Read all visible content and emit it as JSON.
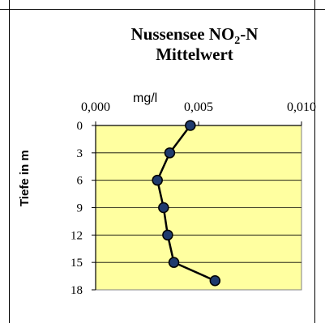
{
  "chart_data": {
    "type": "line",
    "title_main": "Nussensee NO",
    "title_sub": "2",
    "title_suffix": "-N",
    "title_line2": "Mittelwert",
    "xlabel": "mg/l",
    "ylabel": "Tiefe in m",
    "xlim": [
      0.0,
      0.01
    ],
    "ylim": [
      0,
      18
    ],
    "y_inverted": true,
    "x_axis_position": "top",
    "x_ticks": [
      "0,000",
      "0,005",
      "0,010"
    ],
    "y_ticks": [
      "0",
      "3",
      "6",
      "9",
      "12",
      "15",
      "18"
    ],
    "plot_background": "#FFFFA0",
    "line_color": "#000000",
    "marker_color": "#1F3B6E",
    "grid": true,
    "series": [
      {
        "x": [
          0.0046,
          0.0036,
          0.003,
          0.0033,
          0.0035,
          0.0038,
          0.0058
        ],
        "y": [
          0,
          3,
          6,
          9,
          12,
          15,
          17
        ]
      }
    ]
  }
}
